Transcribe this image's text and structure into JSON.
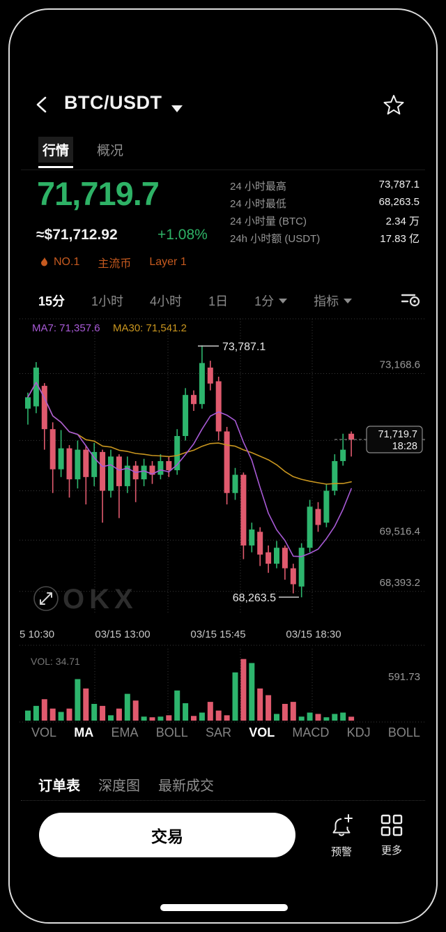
{
  "header": {
    "title": "BTC/USDT"
  },
  "top_tabs": [
    {
      "label": "行情"
    },
    {
      "label": "概况"
    }
  ],
  "price": {
    "last": "71,719.7",
    "fiat": "≈$71,712.92",
    "change": "+1.08%"
  },
  "badges": {
    "rank": "NO.1",
    "tag1": "主流币",
    "tag2": "Layer 1"
  },
  "stats": [
    {
      "label": "24 小时最高",
      "value": "73,787.1"
    },
    {
      "label": "24 小时最低",
      "value": "68,263.5"
    },
    {
      "label": "24 小时量 (BTC)",
      "value": "2.34 万"
    },
    {
      "label": "24h 小时额 (USDT)",
      "value": "17.83 亿"
    }
  ],
  "timeframes": [
    {
      "label": "15分"
    },
    {
      "label": "1小时"
    },
    {
      "label": "4小时"
    },
    {
      "label": "1日"
    },
    {
      "label": "1分"
    },
    {
      "label": "指标"
    }
  ],
  "chart_data": {
    "type": "candlestick",
    "symbol": "BTC/USDT",
    "interval": "15分",
    "ma7_label": "MA7: 71,357.6",
    "ma30_label": "MA30: 71,541.2",
    "high_label": "73,787.1",
    "low_label": "68,263.5",
    "last_price": "71,719.7",
    "last_time": "18:28",
    "watermark": "OKX",
    "vol_label": "VOL: 34.71",
    "vol_axis_max": "591.73",
    "vol_max_value": 591.73,
    "price_top": 74400,
    "price_bottom": 67900,
    "y_ticks": [
      {
        "v": 73168.6,
        "label": "73,168.6"
      },
      {
        "v": 71702.8,
        "label": "71,702.8"
      },
      {
        "v": 70600.0,
        "label": ""
      },
      {
        "v": 69516.4,
        "label": "69,516.4"
      },
      {
        "v": 68393.2,
        "label": "68,393.2"
      }
    ],
    "x_ticks": [
      "5 10:30",
      "03/15 13:00",
      "03/15 15:45",
      "03/15 18:30"
    ],
    "colors": {
      "up": "#2db56d",
      "down": "#e05a6e",
      "ma7": "#a85ad6",
      "ma30": "#c9961f"
    },
    "candles": [
      [
        72400,
        72750,
        72050,
        72650
      ],
      [
        72450,
        73420,
        72300,
        73300
      ],
      [
        72900,
        72960,
        71500,
        71950
      ],
      [
        71950,
        72100,
        70550,
        71070
      ],
      [
        71070,
        71930,
        70900,
        71530
      ],
      [
        71530,
        71600,
        70450,
        70850
      ],
      [
        70850,
        71700,
        70650,
        71500
      ],
      [
        71500,
        71580,
        70300,
        70900
      ],
      [
        70900,
        71650,
        70700,
        71450
      ],
      [
        71450,
        71500,
        69900,
        70600
      ],
      [
        70600,
        71500,
        70450,
        71350
      ],
      [
        71350,
        71400,
        70000,
        70700
      ],
      [
        70700,
        71350,
        70550,
        71150
      ],
      [
        71150,
        71250,
        70350,
        70850
      ],
      [
        70850,
        71300,
        70700,
        71150
      ],
      [
        71150,
        71250,
        70750,
        70950
      ],
      [
        70950,
        71400,
        70850,
        71250
      ],
      [
        71250,
        71350,
        70900,
        71050
      ],
      [
        71050,
        71950,
        70950,
        71800
      ],
      [
        71800,
        72850,
        71700,
        72700
      ],
      [
        72700,
        72800,
        72350,
        72500
      ],
      [
        72500,
        73787.1,
        72400,
        73400
      ],
      [
        73300,
        73450,
        72800,
        72950
      ],
      [
        73000,
        73100,
        71700,
        71900
      ],
      [
        71900,
        72000,
        70300,
        70550
      ],
      [
        70550,
        71100,
        70400,
        70950
      ],
      [
        70950,
        71000,
        69100,
        69400
      ],
      [
        69400,
        69900,
        69250,
        69750
      ],
      [
        69700,
        69800,
        68950,
        69200
      ],
      [
        69250,
        69400,
        68800,
        69000
      ],
      [
        69000,
        69500,
        68900,
        69350
      ],
      [
        69350,
        69400,
        68650,
        68900
      ],
      [
        68900,
        69000,
        68350,
        68550
      ],
      [
        68500,
        69450,
        68263.5,
        69350
      ],
      [
        69350,
        70400,
        69250,
        70250
      ],
      [
        70200,
        70350,
        69700,
        69850
      ],
      [
        69900,
        70750,
        69800,
        70600
      ],
      [
        70600,
        71400,
        70500,
        71250
      ],
      [
        71250,
        71850,
        71150,
        71500
      ],
      [
        71850,
        71900,
        71350,
        71719.7
      ]
    ],
    "volumes": [
      88.8,
      130.2,
      189.4,
      106.5,
      76.9,
      106.5,
      366.9,
      284.0,
      147.9,
      130.2,
      47.3,
      106.5,
      236.7,
      177.5,
      35.5,
      29.6,
      35.5,
      47.3,
      266.3,
      153.8,
      41.4,
      71.0,
      165.7,
      88.8,
      47.3,
      426.0,
      544.4,
      508.9,
      284.0,
      224.9,
      59.2,
      147.9,
      165.7,
      35.5,
      71.0,
      59.2,
      29.6,
      59.2,
      71.0,
      34.71
    ]
  },
  "indicators": {
    "items": [
      "VOL",
      "MA",
      "EMA",
      "BOLL",
      "SAR",
      "VOL",
      "MACD",
      "KDJ",
      "BOLL"
    ]
  },
  "bottom_tabs": [
    {
      "label": "订单表"
    },
    {
      "label": "深度图"
    },
    {
      "label": "最新成交"
    }
  ],
  "actions": {
    "trade": "交易",
    "alert": "预警",
    "more": "更多"
  }
}
